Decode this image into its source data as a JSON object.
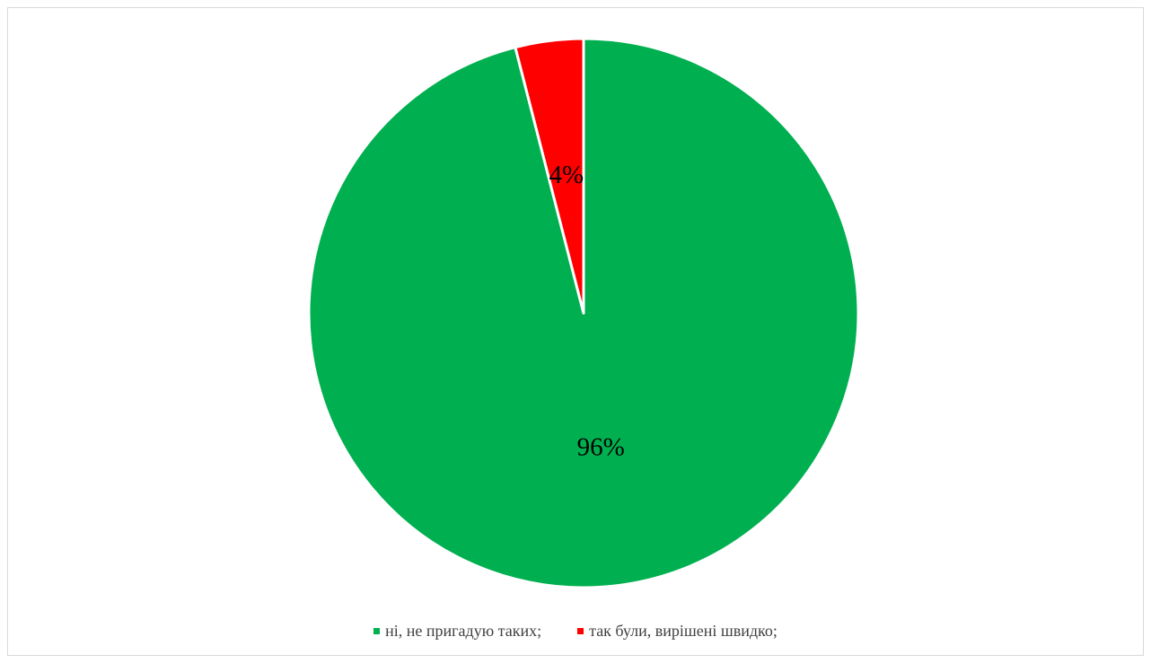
{
  "chart_data": {
    "type": "pie",
    "title": "",
    "categories": [
      "ні, не пригадую таких;",
      "так були, вирішені швидко;"
    ],
    "values": [
      96,
      4
    ],
    "data_labels": [
      "96%",
      "4%"
    ],
    "colors": [
      "#00B050",
      "#FF0000"
    ],
    "legend_position": "bottom",
    "start_angle_deg": 0,
    "direction": "counterclockwise-from-top"
  }
}
